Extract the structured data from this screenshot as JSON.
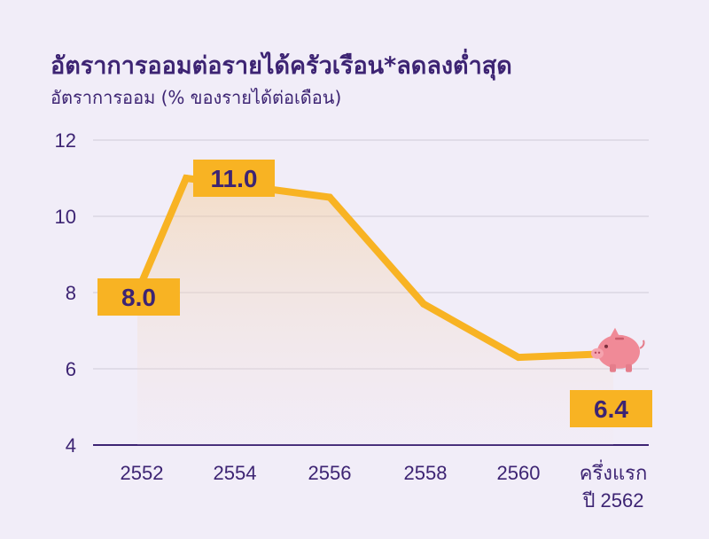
{
  "chart_data": {
    "type": "line",
    "title": "อัตราการออมต่อรายได้ครัวเรือน*ลดลงต่ำสุด",
    "subtitle": "อัตราการออม (% ของรายได้ต่อเดือน)",
    "categories": [
      [
        "2552"
      ],
      [
        "2554"
      ],
      [
        "2556"
      ],
      [
        "2558"
      ],
      [
        "2560"
      ],
      [
        "ครึ่งแรก",
        "ปี 2562"
      ]
    ],
    "x_positions": [
      0,
      1,
      2,
      3,
      4,
      5
    ],
    "points": [
      {
        "x": 0,
        "y": 8.0
      },
      {
        "x": 1,
        "y": 11.0
      },
      {
        "x": 2,
        "y": 10.5
      },
      {
        "x": 3,
        "y": 7.7
      },
      {
        "x": 4,
        "y": 6.3
      },
      {
        "x": 5,
        "y": 6.4
      }
    ],
    "data_labels": [
      {
        "point": 0,
        "text": "8.0"
      },
      {
        "point": 1,
        "text": "11.0"
      },
      {
        "point": 5,
        "text": "6.4"
      }
    ],
    "yticks": [
      "4",
      "6",
      "8",
      "10",
      "12"
    ],
    "ylim": [
      4,
      12
    ],
    "grid": true,
    "colors": {
      "line": "#f8b323",
      "label_bg": "#f8b323",
      "text": "#3d2473",
      "grid": "#d6d1df",
      "axis": "#3d2473",
      "pig": "#f08a97"
    },
    "marker_icon": "piggy-bank-icon"
  }
}
